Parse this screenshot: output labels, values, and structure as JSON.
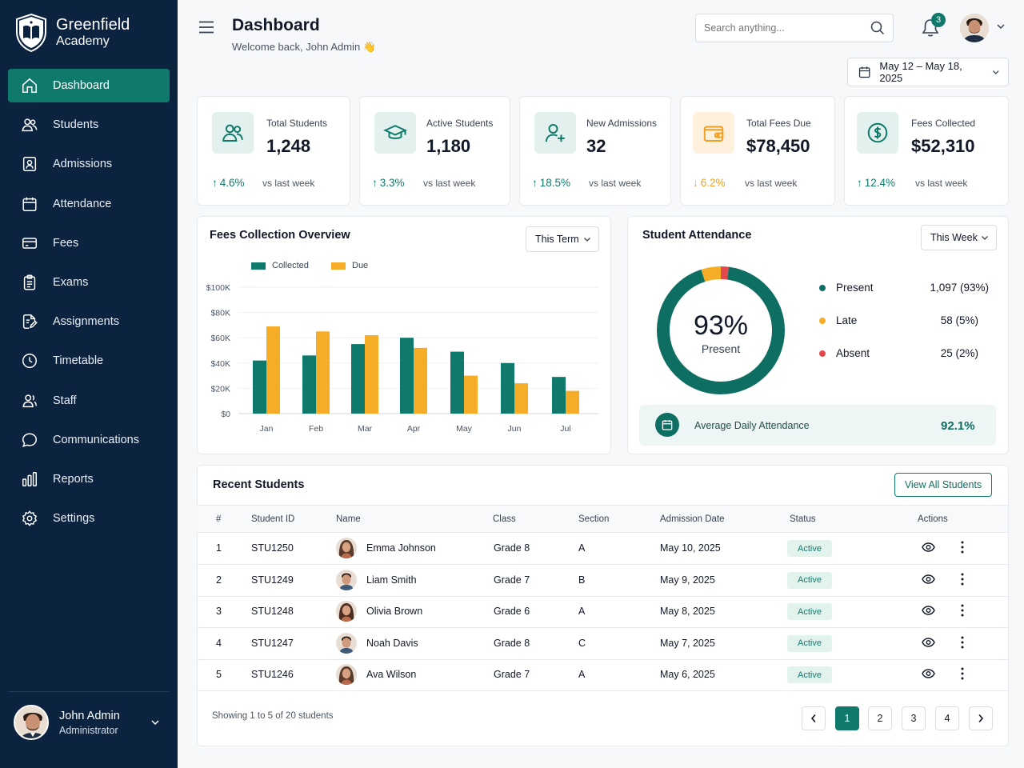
{
  "brand": {
    "name": "Greenfield",
    "sub": "Academy"
  },
  "sidebar": {
    "items": [
      {
        "label": "Dashboard",
        "icon": "home-icon",
        "active": true
      },
      {
        "label": "Students",
        "icon": "users-icon"
      },
      {
        "label": "Admissions",
        "icon": "id-card-icon"
      },
      {
        "label": "Attendance",
        "icon": "calendar-icon"
      },
      {
        "label": "Fees",
        "icon": "credit-card-icon"
      },
      {
        "label": "Exams",
        "icon": "clipboard-icon"
      },
      {
        "label": "Assignments",
        "icon": "pen-document-icon"
      },
      {
        "label": "Timetable",
        "icon": "clock-icon"
      },
      {
        "label": "Staff",
        "icon": "staff-icon"
      },
      {
        "label": "Communications",
        "icon": "chat-icon"
      },
      {
        "label": "Reports",
        "icon": "bar-chart-icon"
      },
      {
        "label": "Settings",
        "icon": "gear-icon"
      }
    ],
    "user": {
      "name": "John Admin",
      "role": "Administrator"
    }
  },
  "header": {
    "title": "Dashboard",
    "welcome": "Welcome back, John Admin 👋",
    "search_placeholder": "Search anything...",
    "notifications": "3",
    "date_range": "May 12 – May 18, 2025"
  },
  "stats": [
    {
      "label": "Total Students",
      "value": "1,248",
      "change": "4.6%",
      "direction": "up",
      "vs": "vs last week",
      "icon": "users-icon"
    },
    {
      "label": "Active Students",
      "value": "1,180",
      "change": "3.3%",
      "direction": "up",
      "vs": "vs last week",
      "icon": "graduation-cap-icon"
    },
    {
      "label": "New Admissions",
      "value": "32",
      "change": "18.5%",
      "direction": "up",
      "vs": "vs last week",
      "icon": "user-plus-icon"
    },
    {
      "label": "Total Fees Due",
      "value": "$78,450",
      "change": "6.2%",
      "direction": "down",
      "vs": "vs last week",
      "icon": "wallet-icon"
    },
    {
      "label": "Fees Collected",
      "value": "$52,310",
      "change": "12.4%",
      "direction": "up",
      "vs": "vs last week",
      "icon": "dollar-icon"
    }
  ],
  "fees_panel": {
    "title": "Fees Collection Overview",
    "filter": "This Term"
  },
  "chart_data": {
    "type": "bar",
    "categories": [
      "Jan",
      "Feb",
      "Mar",
      "Apr",
      "May",
      "Jun",
      "Jul"
    ],
    "series": [
      {
        "name": "Collected",
        "color": "#0f7a6c",
        "values": [
          42000,
          46000,
          55000,
          60000,
          49000,
          40000,
          29000
        ]
      },
      {
        "name": "Due",
        "color": "#f5ad27",
        "values": [
          69000,
          65000,
          62000,
          52000,
          30000,
          24000,
          18000
        ]
      }
    ],
    "yticks": [
      "$100K",
      "$80K",
      "$60K",
      "$40K",
      "$20K",
      "$0"
    ],
    "ylim": [
      0,
      100000
    ],
    "legend": "top-left",
    "grid": true
  },
  "attendance": {
    "title": "Student Attendance",
    "filter": "This Week",
    "center_value": "93%",
    "center_label": "Present",
    "items": [
      {
        "label": "Present",
        "value": "1,097 (93%)",
        "color": "#0f6e62",
        "fraction": 0.93
      },
      {
        "label": "Late",
        "value": "58 (5%)",
        "color": "#f5ad27",
        "fraction": 0.05
      },
      {
        "label": "Absent",
        "value": "25 (2%)",
        "color": "#e5484d",
        "fraction": 0.02
      }
    ],
    "avg_label": "Average Daily Attendance",
    "avg_value": "92.1%"
  },
  "recent": {
    "title": "Recent Students",
    "view_all": "View All Students",
    "columns": [
      "#",
      "Student ID",
      "Name",
      "Class",
      "Section",
      "Admission Date",
      "Status",
      "Actions"
    ],
    "rows": [
      {
        "num": "1",
        "id": "STU1250",
        "name": "Emma Johnson",
        "class": "Grade 8",
        "section": "A",
        "date": "May 10, 2025",
        "status": "Active"
      },
      {
        "num": "2",
        "id": "STU1249",
        "name": "Liam Smith",
        "class": "Grade 7",
        "section": "B",
        "date": "May 9, 2025",
        "status": "Active"
      },
      {
        "num": "3",
        "id": "STU1248",
        "name": "Olivia Brown",
        "class": "Grade 6",
        "section": "A",
        "date": "May 8, 2025",
        "status": "Active"
      },
      {
        "num": "4",
        "id": "STU1247",
        "name": "Noah Davis",
        "class": "Grade 8",
        "section": "C",
        "date": "May 7, 2025",
        "status": "Active"
      },
      {
        "num": "5",
        "id": "STU1246",
        "name": "Ava Wilson",
        "class": "Grade 7",
        "section": "A",
        "date": "May 6, 2025",
        "status": "Active"
      }
    ],
    "showing": "Showing 1 to 5 of 20 students",
    "pages": [
      "1",
      "2",
      "3",
      "4"
    ]
  },
  "colors": {
    "sidebar": "#0c2340",
    "accent": "#0f7a6c",
    "due": "#f5ad27",
    "absent": "#e5484d"
  }
}
